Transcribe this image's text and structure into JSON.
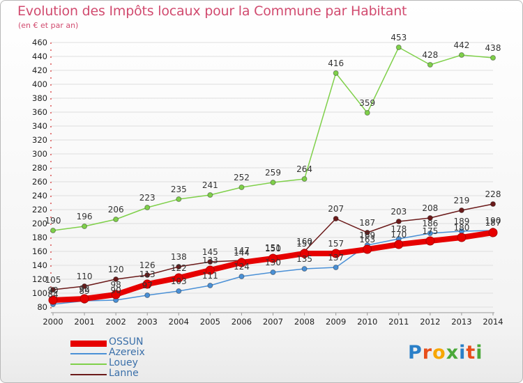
{
  "header": {
    "title": "Evolution des Impôts locaux pour la Commune par Habitant",
    "subtitle": "(en € et par an)"
  },
  "logo": {
    "text": "Proxiti",
    "colors": [
      "#2a7fc8",
      "#e84e1b",
      "#f7a600",
      "#4aa83a",
      "#2a7fc8",
      "#e84e1b",
      "#4aa83a"
    ]
  },
  "chart_data": {
    "type": "line",
    "x": [
      "2000",
      "2001",
      "2002",
      "2003",
      "2004",
      "2005",
      "2006",
      "2007",
      "2008",
      "2009",
      "2010",
      "2011",
      "2012",
      "2013",
      "2014"
    ],
    "ylim": [
      80,
      460
    ],
    "yticks": [
      80,
      100,
      120,
      140,
      160,
      180,
      200,
      220,
      240,
      260,
      280,
      300,
      320,
      340,
      360,
      380,
      400,
      420,
      440,
      460
    ],
    "grid": true,
    "legend_position": "bottom-left",
    "series": [
      {
        "name": "OSSUN",
        "color": "#e60000",
        "values": [
          90,
          92,
          98,
          113,
          122,
          133,
          144,
          150,
          157,
          157,
          163,
          170,
          175,
          180,
          187
        ]
      },
      {
        "name": "Azereix",
        "color": "#4a90d6",
        "values": [
          84,
          89,
          90,
          97,
          103,
          111,
          124,
          130,
          135,
          137,
          169,
          178,
          186,
          189,
          190
        ]
      },
      {
        "name": "Louey",
        "color": "#7fd04a",
        "values": [
          190,
          196,
          206,
          223,
          235,
          241,
          252,
          259,
          264,
          416,
          359,
          453,
          428,
          442,
          438
        ]
      },
      {
        "name": "Lanne",
        "color": "#6b1a1a",
        "values": [
          105,
          110,
          120,
          126,
          138,
          145,
          147,
          151,
          160,
          207,
          187,
          203,
          208,
          219,
          228
        ]
      }
    ]
  }
}
